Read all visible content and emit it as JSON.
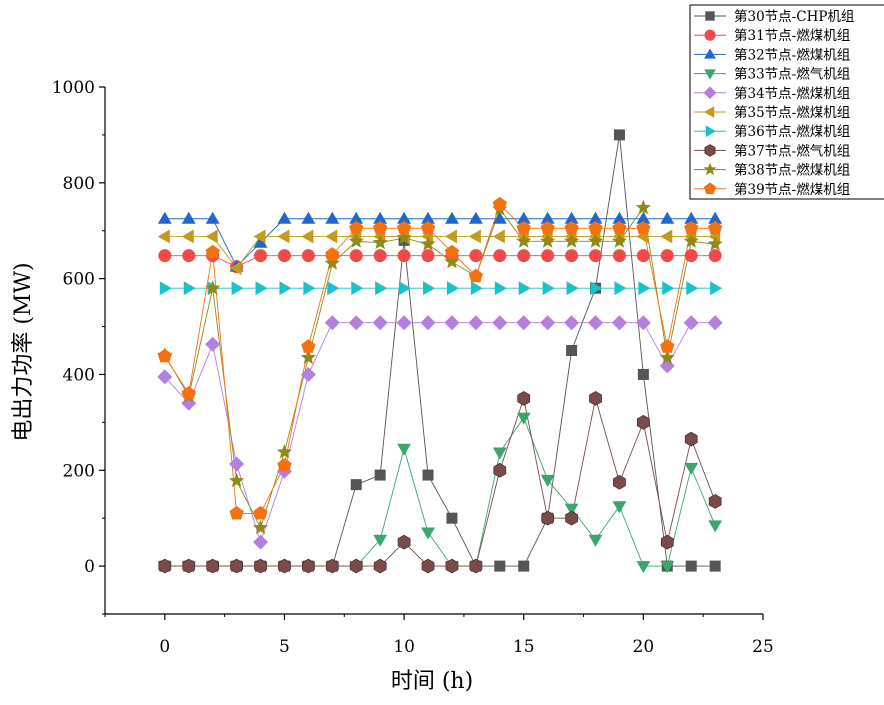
{
  "chart_data": {
    "type": "line",
    "title": "",
    "xlabel": "时间 (h)",
    "ylabel": "电出力功率 (MW)",
    "xlim": [
      -2.5,
      25
    ],
    "ylim": [
      -100,
      1000
    ],
    "xticks": [
      0,
      5,
      10,
      15,
      20,
      25
    ],
    "yticks": [
      0,
      200,
      400,
      600,
      800,
      1000
    ],
    "x": [
      0,
      1,
      2,
      3,
      4,
      5,
      6,
      7,
      8,
      9,
      10,
      11,
      12,
      13,
      14,
      15,
      16,
      17,
      18,
      19,
      20,
      21,
      22,
      23
    ],
    "legend_position": "top-right",
    "series": [
      {
        "name": "第30节点-CHP机组",
        "color": "#555555",
        "marker": "square",
        "values": [
          0,
          0,
          0,
          0,
          0,
          0,
          0,
          0,
          170,
          190,
          680,
          190,
          100,
          0,
          0,
          0,
          100,
          450,
          580,
          900,
          400,
          0,
          0,
          0
        ]
      },
      {
        "name": "第31节点-燃煤机组",
        "color": "#f04a4a",
        "marker": "circle",
        "values": [
          648,
          648,
          648,
          625,
          648,
          648,
          648,
          648,
          648,
          648,
          648,
          648,
          648,
          648,
          648,
          648,
          648,
          648,
          648,
          648,
          648,
          648,
          648,
          648
        ]
      },
      {
        "name": "第32节点-燃煤机组",
        "color": "#2166c8",
        "marker": "triangle-up",
        "values": [
          725,
          725,
          725,
          625,
          675,
          725,
          725,
          725,
          725,
          725,
          725,
          725,
          725,
          725,
          725,
          725,
          725,
          725,
          725,
          725,
          725,
          725,
          725,
          725
        ]
      },
      {
        "name": "第33节点-燃气机组",
        "color": "#3aa66a",
        "marker": "triangle-down",
        "values": [
          0,
          0,
          0,
          0,
          0,
          0,
          0,
          0,
          0,
          55,
          245,
          70,
          0,
          0,
          237,
          310,
          180,
          120,
          55,
          125,
          0,
          0,
          205,
          85
        ]
      },
      {
        "name": "第34节点-燃煤机组",
        "color": "#b37fe0",
        "marker": "diamond",
        "values": [
          395,
          340,
          463,
          213,
          50,
          198,
          400,
          508,
          508,
          508,
          508,
          508,
          508,
          508,
          508,
          508,
          508,
          508,
          508,
          508,
          508,
          418,
          508,
          508
        ]
      },
      {
        "name": "第35节点-燃煤机组",
        "color": "#c49a1c",
        "marker": "triangle-left",
        "values": [
          688,
          688,
          688,
          622,
          688,
          688,
          688,
          688,
          688,
          688,
          688,
          688,
          688,
          688,
          688,
          688,
          688,
          688,
          688,
          688,
          688,
          688,
          688,
          688
        ]
      },
      {
        "name": "第36节点-燃煤机组",
        "color": "#17c3c8",
        "marker": "triangle-right",
        "values": [
          580,
          580,
          580,
          580,
          580,
          580,
          580,
          580,
          580,
          580,
          580,
          580,
          580,
          580,
          580,
          580,
          580,
          580,
          580,
          580,
          580,
          580,
          580,
          580
        ]
      },
      {
        "name": "第37节点-燃气机组",
        "color": "#7a4b4b",
        "marker": "hexagon",
        "values": [
          0,
          0,
          0,
          0,
          0,
          0,
          0,
          0,
          0,
          0,
          50,
          0,
          0,
          0,
          200,
          350,
          100,
          100,
          350,
          175,
          300,
          50,
          265,
          135
        ]
      },
      {
        "name": "第38节点-燃煤机组",
        "color": "#8f8a1a",
        "marker": "star",
        "values": [
          440,
          355,
          580,
          178,
          80,
          238,
          435,
          632,
          678,
          675,
          685,
          672,
          635,
          605,
          745,
          678,
          678,
          678,
          678,
          678,
          748,
          435,
          678,
          672
        ]
      },
      {
        "name": "第39节点-燃煤机组",
        "color": "#f5700f",
        "marker": "pentagon",
        "values": [
          438,
          360,
          655,
          110,
          110,
          210,
          458,
          650,
          705,
          705,
          705,
          705,
          655,
          605,
          755,
          705,
          705,
          705,
          705,
          705,
          705,
          458,
          705,
          705
        ]
      }
    ]
  }
}
